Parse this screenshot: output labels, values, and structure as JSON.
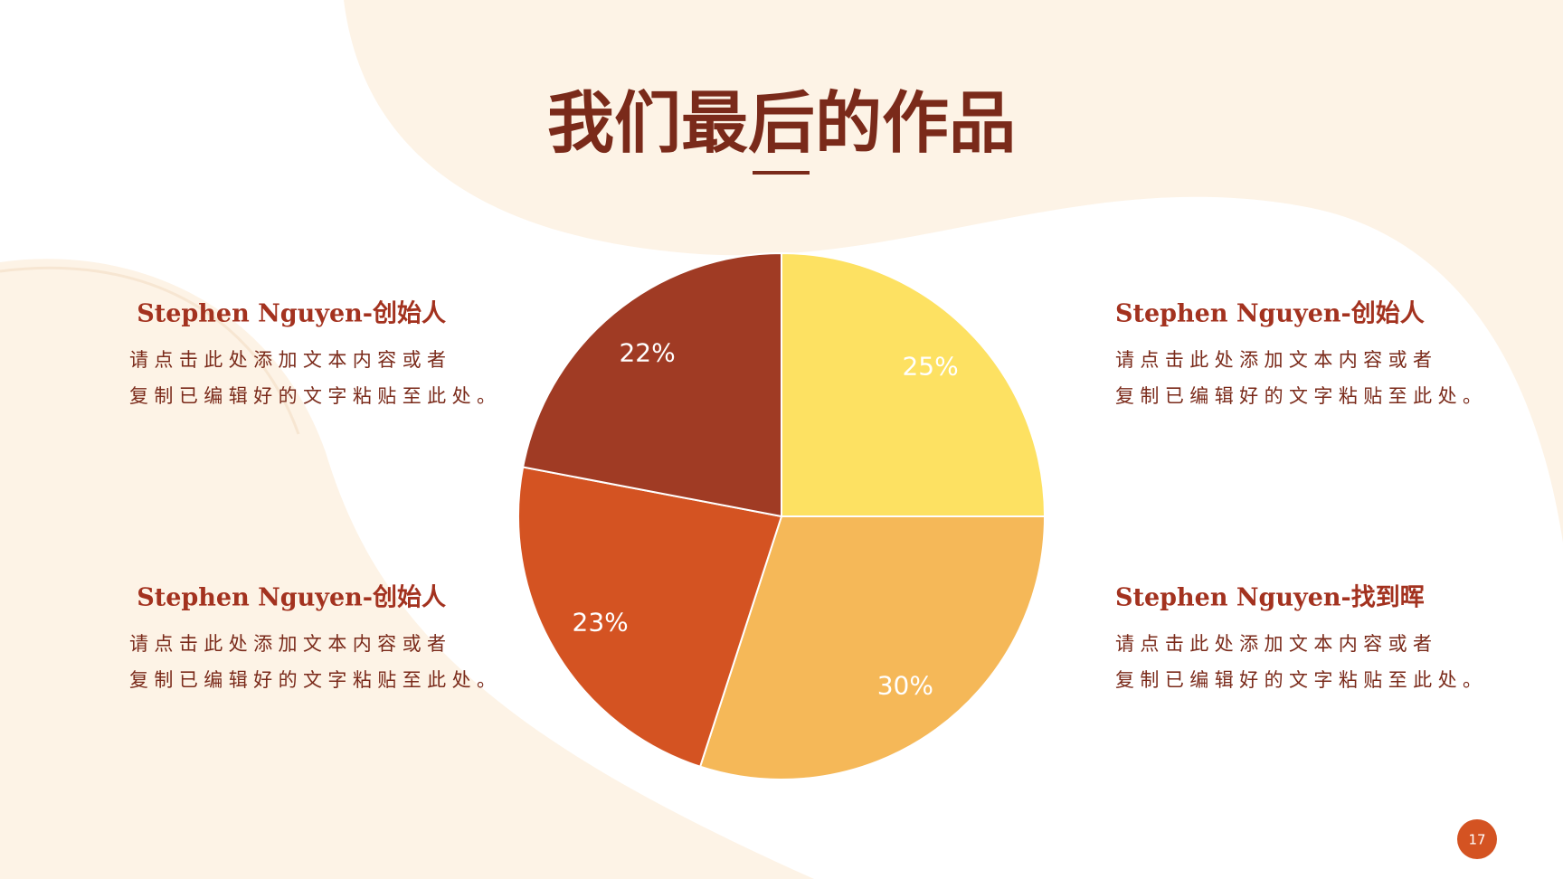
{
  "chart_data": {
    "type": "pie",
    "title": "我们最后的作品",
    "values": [
      25,
      30,
      23,
      22
    ],
    "value_labels": [
      "25%",
      "30%",
      "23%",
      "22%"
    ],
    "colors": [
      "#fde162",
      "#f5b858",
      "#d45322",
      "#a03b24"
    ]
  },
  "panels": [
    {
      "heading": "Stephen Nguyen-创始人",
      "body": "请点击此处添加文本内容或者复制已编辑好的文字粘贴至此处。"
    },
    {
      "heading": "Stephen Nguyen-创始人",
      "body": "请点击此处添加文本内容或者复制已编辑好的文字粘贴至此处。"
    },
    {
      "heading": "Stephen Nguyen-创始人",
      "body": "请点击此处添加文本内容或者复制已编辑好的文字粘贴至此处。"
    },
    {
      "heading": "Stephen Nguyen-找到晖",
      "body": "请点击此处添加文本内容或者复制已编辑好的文字粘贴至此处。"
    }
  ],
  "page_number": "17"
}
